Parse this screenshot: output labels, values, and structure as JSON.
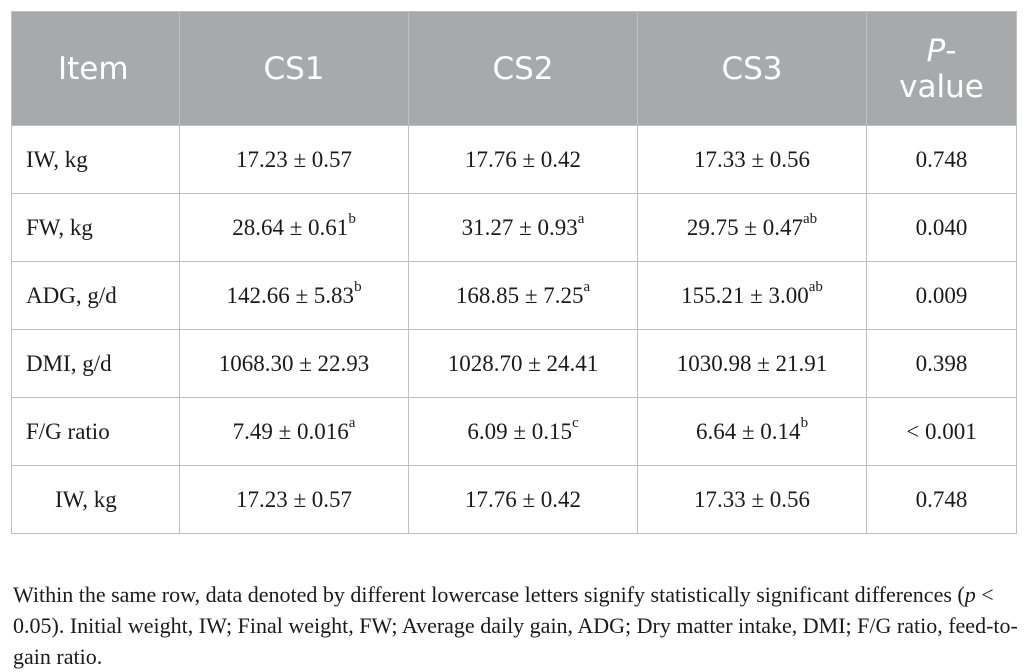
{
  "table": {
    "headers": {
      "item": "Item",
      "cs1": "CS1",
      "cs2": "CS2",
      "cs3": "CS3",
      "pvalue_letter": "P",
      "pvalue_rest_line1": "-",
      "pvalue_rest_line2": "value"
    },
    "rows": [
      {
        "item": "IW, kg",
        "cs1": "17.23 ± 0.57",
        "cs1_sup": "",
        "cs2": "17.76 ± 0.42",
        "cs2_sup": "",
        "cs3": "17.33 ± 0.56",
        "cs3_sup": "",
        "p": "0.748"
      },
      {
        "item": "FW, kg",
        "cs1": "28.64 ± 0.61",
        "cs1_sup": "b",
        "cs2": "31.27 ± 0.93",
        "cs2_sup": "a",
        "cs3": "29.75 ± 0.47",
        "cs3_sup": "ab",
        "p": "0.040"
      },
      {
        "item": "ADG, g/d",
        "cs1": "142.66 ± 5.83",
        "cs1_sup": "b",
        "cs2": "168.85 ± 7.25",
        "cs2_sup": "a",
        "cs3": "155.21 ± 3.00",
        "cs3_sup": "ab",
        "p": "0.009"
      },
      {
        "item": "DMI, g/d",
        "cs1": "1068.30 ± 22.93",
        "cs1_sup": "",
        "cs2": "1028.70 ± 24.41",
        "cs2_sup": "",
        "cs3": "1030.98 ± 21.91",
        "cs3_sup": "",
        "p": "0.398"
      },
      {
        "item": "F/G ratio",
        "cs1": "7.49 ± 0.016",
        "cs1_sup": "a",
        "cs2": "6.09 ± 0.15",
        "cs2_sup": "c",
        "cs3": "6.64 ± 0.14",
        "cs3_sup": "b",
        "p": "< 0.001"
      },
      {
        "item": "IW, kg",
        "cs1": "17.23 ± 0.57",
        "cs1_sup": "",
        "cs2": "17.76 ± 0.42",
        "cs2_sup": "",
        "cs3": "17.33 ± 0.56",
        "cs3_sup": "",
        "p": "0.748"
      }
    ]
  },
  "footnote": {
    "part1": "Within the same row, data denoted by different lowercase letters signify statistically significant differences (",
    "p_letter": "p",
    "part2": " < 0.05). Initial weight, IW; Final weight, FW; Average daily gain, ADG; Dry matter intake, DMI; F/G ratio, feed-to-gain ratio."
  },
  "colors": {
    "header_bg": "#a8a9ab",
    "header_text": "#ffffff",
    "border": "#bfbfbf",
    "body_text": "#1a1a1a"
  }
}
